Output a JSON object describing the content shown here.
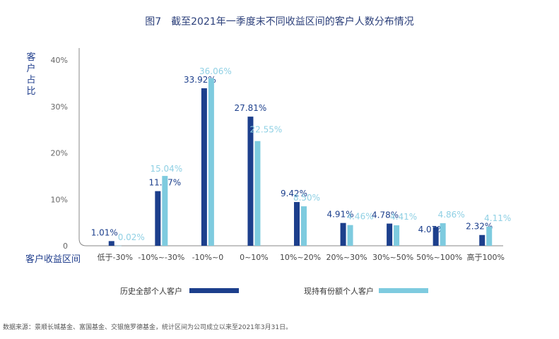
{
  "title": "图7　截至2021年一季度末不同收益区间的客户人数分布情况",
  "ylabel": "客户占比",
  "xlabel": "客户收益区间",
  "source": "数据来源：景顺长城基金、富国基金、交银施罗德基金，统计区间为公司成立以来至2021年3月31日。",
  "colors": {
    "series1": "#1c3f8c",
    "series2": "#7ecbdf"
  },
  "chart_data": {
    "type": "bar",
    "title": "图7　截至2021年一季度末不同收益区间的客户人数分布情况",
    "xlabel": "客户收益区间",
    "ylabel": "客户占比",
    "ylim": [
      0,
      40
    ],
    "yticks": [
      "40%",
      "30%",
      "20%",
      "10%",
      "0"
    ],
    "categories": [
      "低于-30%",
      "-10%~-30%",
      "-10%~0",
      "0~10%",
      "10%~20%",
      "20%~30%",
      "30%~50%",
      "50%~100%",
      "高于100%"
    ],
    "series": [
      {
        "name": "历史全部个人客户",
        "values": [
          1.01,
          11.77,
          33.92,
          27.81,
          9.42,
          4.91,
          4.78,
          4.07,
          2.32
        ],
        "labels": [
          "1.01%",
          "11.77%",
          "33.92%",
          "27.81%",
          "9.42%",
          "4.91%",
          "4.78%",
          "4.07%",
          "2.32%"
        ]
      },
      {
        "name": "现持有份额个人客户",
        "values": [
          0.02,
          15.04,
          36.06,
          22.55,
          8.5,
          4.46,
          4.41,
          4.86,
          4.11
        ],
        "labels": [
          "0.02%",
          "15.04%",
          "36.06%",
          "22.55%",
          "8.50%",
          "4.46%",
          "4.41%",
          "4.86%",
          "4.11%"
        ]
      }
    ]
  }
}
